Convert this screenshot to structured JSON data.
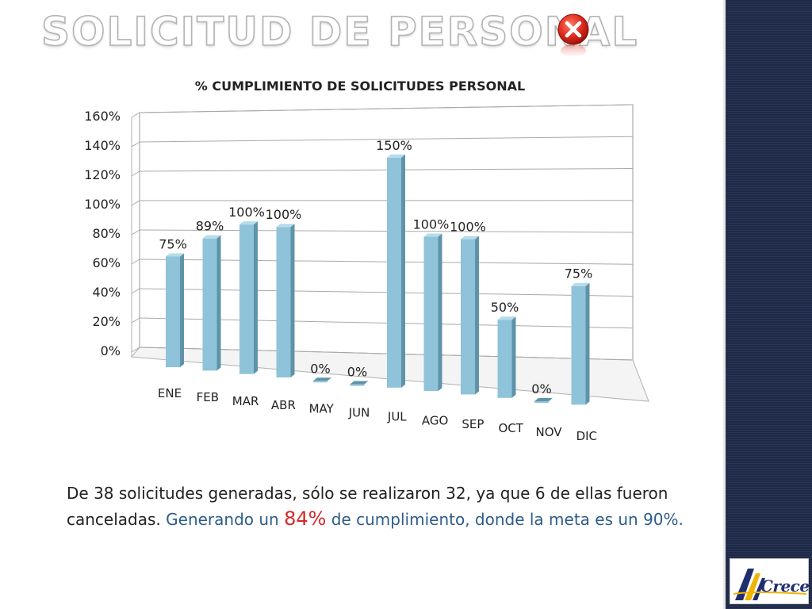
{
  "slide": {
    "title": "SOLICITUD DE PERSONAL",
    "close_icon": "close-icon",
    "logo_text": "Crece"
  },
  "summary": {
    "text_plain": "De 38 solicitudes generadas, sólo se realizaron 32, ya que 6 de ellas fueron canceladas.",
    "text_highlight_before": " Generando un ",
    "highlight_value": "84%",
    "text_highlight_after": " de cumplimiento, donde la meta es un 90%."
  },
  "colors": {
    "bar_front": "#8fc3d9",
    "bar_side": "#5f93aa",
    "bar_top": "#b6dbe9",
    "accent_blue": "#2e5c8a",
    "accent_red": "#d62828",
    "panel": "#1e2a48"
  },
  "chart_data": {
    "type": "bar",
    "title": "% CUMPLIMIENTO DE SOLICITUDES PERSONAL",
    "categories": [
      "ENE",
      "FEB",
      "MAR",
      "ABR",
      "MAY",
      "JUN",
      "JUL",
      "AGO",
      "SEP",
      "OCT",
      "NOV",
      "DIC"
    ],
    "values": [
      75,
      89,
      100,
      100,
      0,
      0,
      150,
      100,
      100,
      50,
      0,
      75
    ],
    "data_labels": [
      "75%",
      "89%",
      "100%",
      "100%",
      "0%",
      "0%",
      "150%",
      "100%",
      "100%",
      "50%",
      "0%",
      "75%"
    ],
    "y_ticks": [
      "0%",
      "20%",
      "40%",
      "60%",
      "80%",
      "100%",
      "120%",
      "140%",
      "160%"
    ],
    "ylim": [
      0,
      160
    ],
    "grid": true,
    "style": "3d-column"
  }
}
